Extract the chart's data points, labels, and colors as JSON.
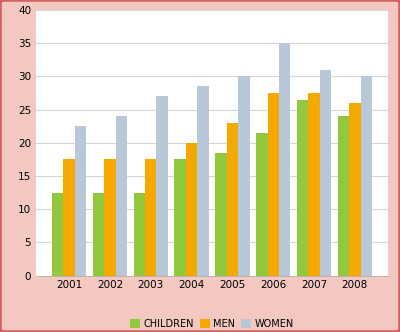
{
  "years": [
    "2001",
    "2002",
    "2003",
    "2004",
    "2005",
    "2006",
    "2007",
    "2008"
  ],
  "children": [
    12.5,
    12.5,
    12.5,
    17.5,
    18.5,
    21.5,
    26.5,
    24.0
  ],
  "men": [
    17.5,
    17.5,
    17.5,
    20.0,
    23.0,
    27.5,
    27.5,
    26.0
  ],
  "women": [
    22.5,
    24.0,
    27.0,
    28.5,
    30.0,
    35.0,
    31.0,
    30.0
  ],
  "colors": {
    "children": "#92C83E",
    "men": "#F5A800",
    "women": "#B8C8D8"
  },
  "legend_labels": [
    "CHILDREN",
    "MEN",
    "WOMEN"
  ],
  "ylim": [
    0,
    40
  ],
  "yticks": [
    0,
    5,
    10,
    15,
    20,
    25,
    30,
    35,
    40
  ],
  "bar_width": 0.28,
  "plot_bg": "#FFFFFF",
  "figure_bg": "#F2C8C0",
  "grid_color": "#D8D8D8",
  "border_color": "#D46060"
}
